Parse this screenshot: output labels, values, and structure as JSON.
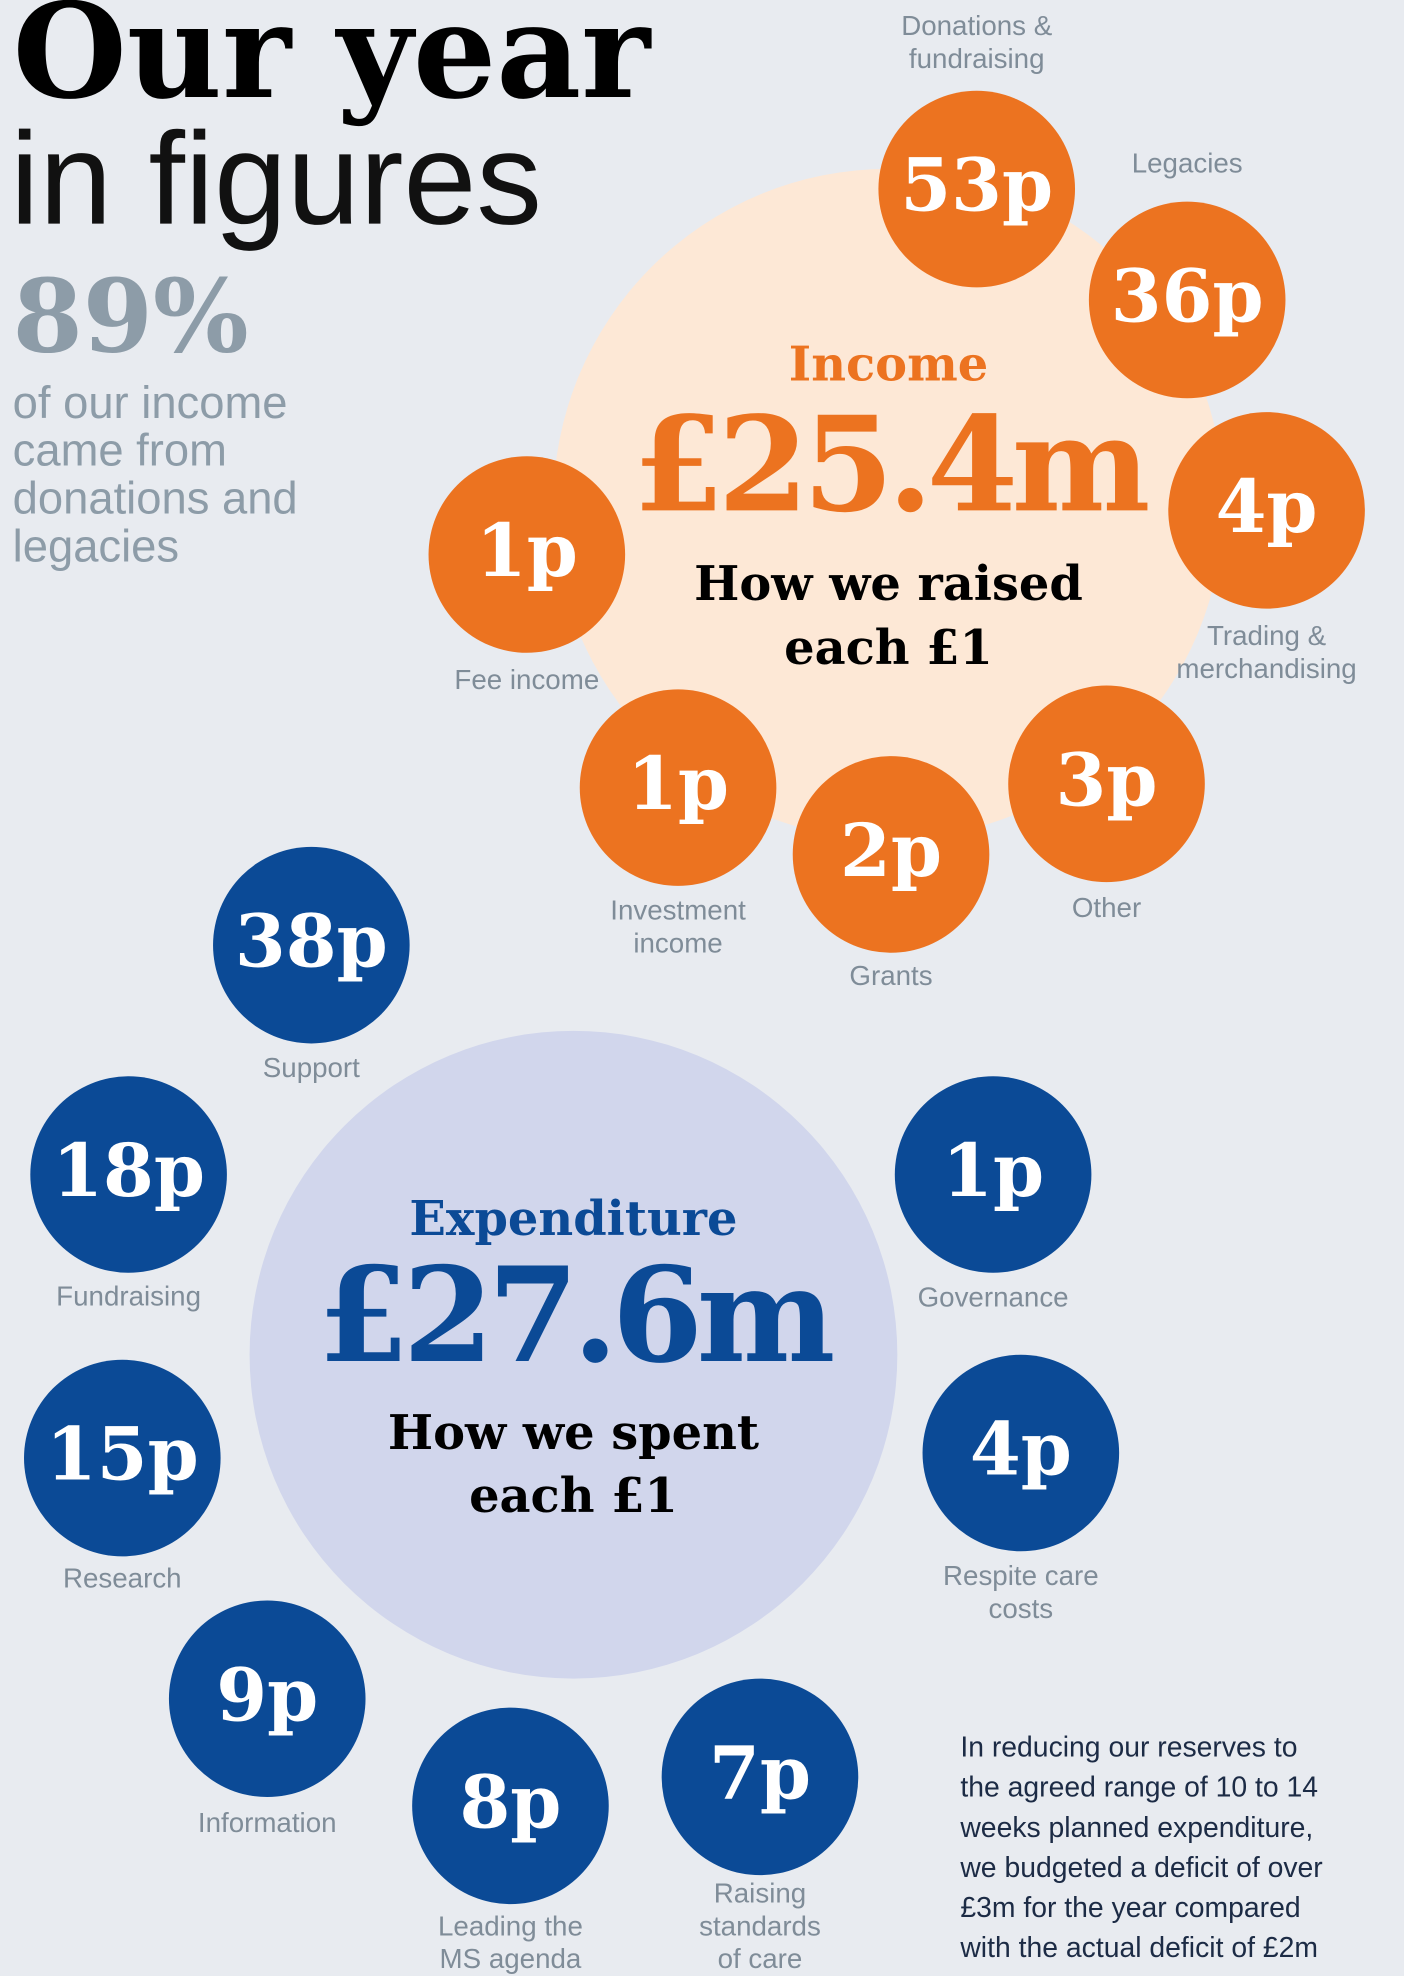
{
  "header": {
    "title_line1": "Our year",
    "title_line2": "in figures"
  },
  "highlight": {
    "value": "89%",
    "lines": [
      "of our income",
      "came from",
      "donations and",
      "legacies"
    ]
  },
  "income": {
    "label": "Income",
    "total": "£25.4m",
    "caption": [
      "How we raised",
      "each £1"
    ],
    "items": [
      {
        "value": "53p",
        "label": [
          "Donations &",
          "fundraising"
        ]
      },
      {
        "value": "36p",
        "label": [
          "Legacies"
        ]
      },
      {
        "value": "4p",
        "label": [
          "Trading &",
          "merchandising"
        ]
      },
      {
        "value": "3p",
        "label": [
          "Other"
        ]
      },
      {
        "value": "2p",
        "label": [
          "Grants"
        ]
      },
      {
        "value": "1p",
        "label": [
          "Investment",
          "income"
        ]
      },
      {
        "value": "1p",
        "label": [
          "Fee income"
        ]
      }
    ]
  },
  "expenditure": {
    "label": "Expenditure",
    "total": "£27.6m",
    "caption": [
      "How we spent",
      "each £1"
    ],
    "items": [
      {
        "value": "38p",
        "label": [
          "Support"
        ]
      },
      {
        "value": "18p",
        "label": [
          "Fundraising"
        ]
      },
      {
        "value": "15p",
        "label": [
          "Research"
        ]
      },
      {
        "value": "9p",
        "label": [
          "Information"
        ]
      },
      {
        "value": "8p",
        "label": [
          "Leading the",
          "MS agenda"
        ]
      },
      {
        "value": "7p",
        "label": [
          "Raising",
          "standards",
          "of care"
        ]
      },
      {
        "value": "4p",
        "label": [
          "Respite care",
          "costs"
        ]
      },
      {
        "value": "1p",
        "label": [
          "Governance"
        ]
      }
    ]
  },
  "note": {
    "lines": [
      "In reducing our reserves to",
      "the agreed range of 10 to 14",
      "weeks planned expenditure,",
      "we budgeted a deficit of over",
      "£3m for the year compared",
      "with the actual deficit of £2m"
    ]
  }
}
